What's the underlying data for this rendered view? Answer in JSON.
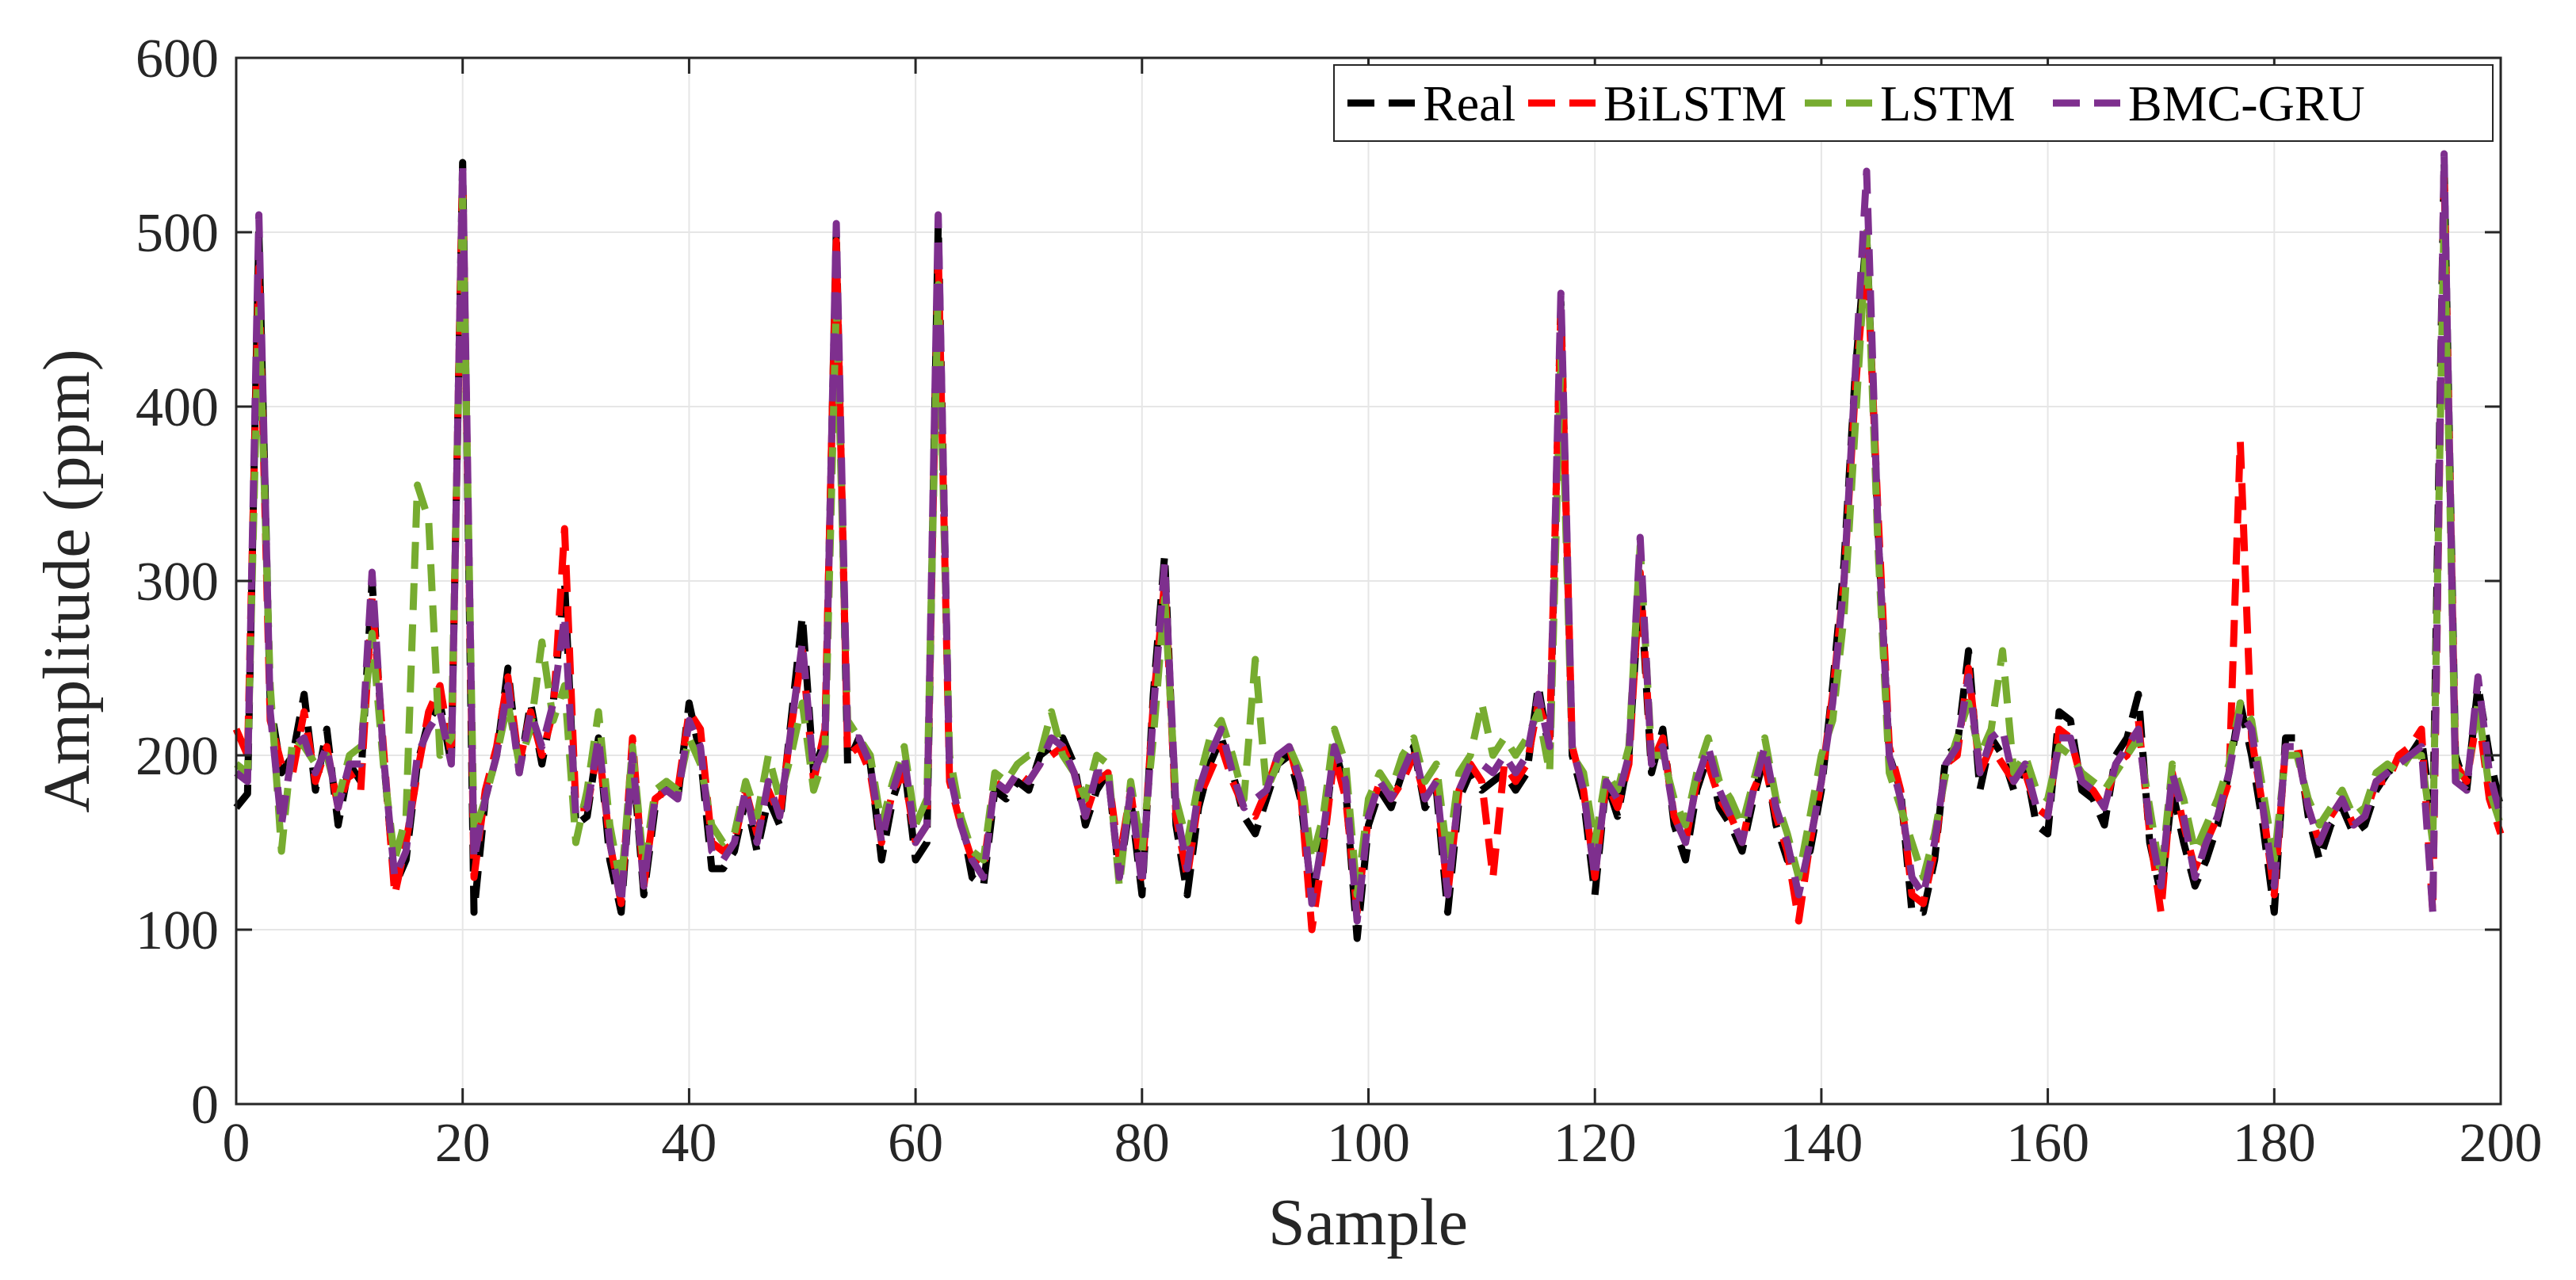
{
  "chart_data": {
    "type": "line",
    "title": "",
    "xlabel": "Sample",
    "ylabel": "Amplitude  (ppm)",
    "xlim": [
      0,
      200
    ],
    "ylim": [
      0,
      600
    ],
    "xticks": [
      0,
      20,
      40,
      60,
      80,
      100,
      120,
      140,
      160,
      180,
      200
    ],
    "yticks": [
      0,
      100,
      200,
      300,
      400,
      500,
      600
    ],
    "xtick_labels": [
      "0",
      "20",
      "40",
      "60",
      "80",
      "100",
      "120",
      "140",
      "160",
      "180",
      "200"
    ],
    "ytick_labels": [
      "0",
      "100",
      "200",
      "300",
      "400",
      "500",
      "600"
    ],
    "grid": true,
    "legend_position": "top-right",
    "series": [
      {
        "name": "Real",
        "color": "#000000",
        "values": [
          170,
          178,
          500,
          230,
          190,
          200,
          235,
          180,
          215,
          160,
          195,
          185,
          300,
          200,
          125,
          140,
          195,
          220,
          230,
          195,
          540,
          110,
          175,
          200,
          250,
          190,
          230,
          195,
          230,
          300,
          160,
          165,
          210,
          140,
          110,
          200,
          120,
          170,
          185,
          175,
          230,
          200,
          135,
          135,
          145,
          175,
          145,
          175,
          160,
          220,
          280,
          190,
          210,
          500,
          195,
          210,
          195,
          140,
          175,
          195,
          140,
          150,
          505,
          190,
          165,
          130,
          125,
          180,
          175,
          185,
          180,
          200,
          205,
          210,
          195,
          160,
          180,
          190,
          130,
          175,
          120,
          235,
          315,
          160,
          120,
          170,
          195,
          210,
          190,
          165,
          155,
          175,
          195,
          200,
          175,
          120,
          150,
          205,
          180,
          95,
          160,
          180,
          170,
          190,
          205,
          170,
          180,
          110,
          175,
          190,
          180,
          185,
          190,
          180,
          190,
          240,
          200,
          460,
          200,
          175,
          120,
          185,
          165,
          200,
          300,
          190,
          215,
          160,
          140,
          180,
          200,
          170,
          160,
          145,
          175,
          200,
          160,
          140,
          140,
          145,
          180,
          240,
          310,
          420,
          500,
          330,
          200,
          180,
          110,
          110,
          140,
          200,
          205,
          260,
          180,
          210,
          200,
          180,
          195,
          160,
          155,
          225,
          220,
          180,
          175,
          160,
          200,
          210,
          235,
          150,
          120,
          180,
          150,
          125,
          140,
          160,
          190,
          230,
          200,
          160,
          110,
          210,
          210,
          165,
          140,
          160,
          170,
          155,
          160,
          180,
          190,
          195,
          200,
          210,
          160,
          540,
          200,
          180,
          240,
          200,
          170
        ]
      },
      {
        "name": "BiLSTM",
        "color": "#ff0000",
        "values": [
          215,
          200,
          480,
          220,
          195,
          190,
          225,
          185,
          205,
          170,
          190,
          180,
          290,
          205,
          120,
          150,
          190,
          225,
          240,
          200,
          535,
          130,
          180,
          205,
          245,
          195,
          225,
          200,
          225,
          330,
          170,
          170,
          205,
          150,
          115,
          210,
          125,
          175,
          180,
          180,
          225,
          215,
          150,
          145,
          150,
          180,
          155,
          180,
          165,
          215,
          260,
          185,
          215,
          495,
          200,
          205,
          190,
          150,
          180,
          190,
          150,
          160,
          490,
          185,
          160,
          140,
          135,
          185,
          180,
          190,
          185,
          195,
          200,
          205,
          190,
          165,
          185,
          190,
          140,
          180,
          130,
          230,
          300,
          165,
          130,
          175,
          190,
          205,
          185,
          170,
          165,
          180,
          200,
          205,
          180,
          100,
          145,
          200,
          175,
          110,
          165,
          185,
          175,
          185,
          200,
          175,
          185,
          120,
          180,
          195,
          185,
          130,
          195,
          185,
          195,
          230,
          210,
          455,
          205,
          180,
          130,
          185,
          170,
          195,
          305,
          195,
          210,
          165,
          150,
          185,
          195,
          175,
          165,
          150,
          180,
          195,
          165,
          145,
          105,
          150,
          185,
          235,
          300,
          410,
          490,
          340,
          205,
          180,
          120,
          115,
          145,
          195,
          200,
          250,
          190,
          205,
          195,
          185,
          190,
          170,
          165,
          215,
          210,
          185,
          180,
          170,
          195,
          200,
          220,
          155,
          110,
          190,
          160,
          135,
          150,
          165,
          185,
          380,
          210,
          170,
          120,
          205,
          205,
          170,
          150,
          165,
          175,
          160,
          165,
          185,
          185,
          200,
          205,
          215,
          110,
          535,
          195,
          185,
          225,
          175,
          155
        ]
      },
      {
        "name": "LSTM",
        "color": "#77ac30",
        "values": [
          195,
          190,
          460,
          240,
          145,
          210,
          205,
          195,
          200,
          175,
          200,
          205,
          270,
          195,
          140,
          165,
          355,
          335,
          200,
          210,
          520,
          155,
          175,
          200,
          230,
          195,
          215,
          265,
          220,
          240,
          150,
          180,
          225,
          160,
          125,
          205,
          135,
          180,
          185,
          180,
          210,
          195,
          160,
          150,
          155,
          185,
          165,
          200,
          175,
          200,
          230,
          180,
          200,
          460,
          220,
          210,
          200,
          160,
          185,
          205,
          160,
          175,
          470,
          200,
          165,
          145,
          140,
          190,
          185,
          195,
          200,
          200,
          225,
          200,
          190,
          175,
          200,
          195,
          125,
          185,
          145,
          210,
          290,
          175,
          150,
          185,
          210,
          220,
          200,
          175,
          255,
          180,
          195,
          205,
          190,
          140,
          165,
          215,
          195,
          120,
          175,
          190,
          180,
          200,
          210,
          185,
          195,
          140,
          190,
          200,
          230,
          200,
          210,
          200,
          210,
          225,
          190,
          430,
          200,
          190,
          150,
          190,
          180,
          205,
          320,
          200,
          200,
          175,
          160,
          190,
          210,
          185,
          175,
          160,
          185,
          210,
          175,
          155,
          130,
          165,
          200,
          220,
          280,
          390,
          500,
          320,
          190,
          170,
          150,
          130,
          155,
          190,
          210,
          230,
          200,
          215,
          260,
          190,
          200,
          180,
          175,
          205,
          200,
          190,
          185,
          180,
          190,
          200,
          210,
          170,
          130,
          195,
          175,
          145,
          160,
          175,
          195,
          230,
          220,
          180,
          140,
          200,
          200,
          175,
          160,
          170,
          180,
          165,
          170,
          190,
          195,
          190,
          200,
          200,
          150,
          510,
          190,
          185,
          230,
          180,
          160
        ]
      },
      {
        "name": "BMC-GRU",
        "color": "#7e2f8e",
        "values": [
          190,
          185,
          510,
          225,
          160,
          205,
          210,
          190,
          205,
          170,
          195,
          195,
          305,
          200,
          130,
          145,
          200,
          215,
          225,
          195,
          540,
          140,
          175,
          200,
          240,
          190,
          225,
          205,
          230,
          280,
          165,
          170,
          210,
          150,
          115,
          200,
          125,
          175,
          180,
          175,
          220,
          205,
          145,
          140,
          150,
          180,
          150,
          185,
          165,
          215,
          265,
          190,
          205,
          505,
          210,
          210,
          195,
          150,
          180,
          200,
          150,
          160,
          510,
          190,
          160,
          140,
          130,
          185,
          180,
          190,
          185,
          195,
          210,
          205,
          190,
          165,
          190,
          190,
          130,
          180,
          125,
          225,
          310,
          170,
          135,
          180,
          200,
          215,
          190,
          170,
          175,
          180,
          200,
          205,
          185,
          115,
          155,
          205,
          185,
          105,
          165,
          185,
          175,
          190,
          205,
          175,
          185,
          120,
          180,
          195,
          195,
          190,
          200,
          190,
          200,
          235,
          205,
          465,
          205,
          180,
          130,
          185,
          175,
          200,
          325,
          195,
          205,
          165,
          150,
          185,
          205,
          180,
          165,
          150,
          180,
          205,
          170,
          150,
          120,
          150,
          185,
          230,
          300,
          420,
          535,
          330,
          200,
          175,
          130,
          120,
          150,
          195,
          205,
          245,
          190,
          210,
          215,
          185,
          195,
          170,
          165,
          210,
          210,
          185,
          180,
          170,
          195,
          205,
          215,
          160,
          125,
          190,
          165,
          130,
          150,
          165,
          190,
          225,
          215,
          170,
          125,
          205,
          205,
          170,
          150,
          165,
          175,
          160,
          165,
          185,
          190,
          195,
          200,
          205,
          110,
          545,
          185,
          180,
          245,
          190,
          165
        ]
      }
    ]
  }
}
